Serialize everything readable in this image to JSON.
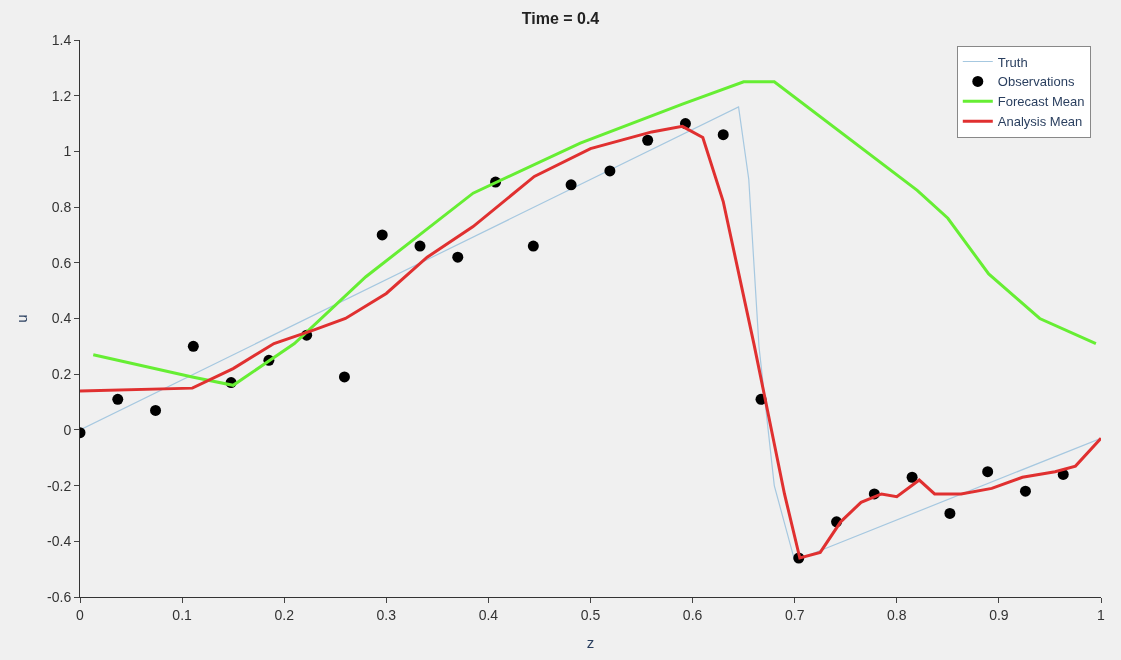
{
  "chart_data": {
    "type": "line",
    "title": "Time = 0.4",
    "xlabel": "z",
    "ylabel": "u",
    "xlim": [
      0,
      1
    ],
    "ylim": [
      -0.6,
      1.4
    ],
    "xticks": [
      0,
      0.1,
      0.2,
      0.3,
      0.4,
      0.5,
      0.6,
      0.7,
      0.8,
      0.9,
      1
    ],
    "yticks": [
      -0.6,
      -0.4,
      -0.2,
      0,
      0.2,
      0.4,
      0.6,
      0.8,
      1,
      1.2,
      1.4
    ],
    "grid": false,
    "legend": "top right",
    "marker": "none",
    "series": [
      {
        "name": "Truth",
        "color": "#a6c8e0",
        "x": [
          0,
          0.645,
          0.655,
          0.665,
          0.68,
          0.7,
          1.0
        ],
        "values": [
          0,
          1.16,
          0.9,
          0.3,
          -0.2,
          -0.47,
          -0.03
        ]
      },
      {
        "name": "Observations",
        "color": "#000000",
        "type": "scatter",
        "marker": "circle",
        "x": [
          0,
          0.037,
          0.074,
          0.111,
          0.148,
          0.185,
          0.222,
          0.259,
          0.296,
          0.333,
          0.37,
          0.407,
          0.444,
          0.481,
          0.519,
          0.556,
          0.593,
          0.63,
          0.667,
          0.704,
          0.741,
          0.778,
          0.815,
          0.852,
          0.889,
          0.926,
          0.963
        ],
        "values": [
          -0.01,
          0.11,
          0.07,
          0.3,
          0.17,
          0.25,
          0.34,
          0.19,
          0.7,
          0.66,
          0.62,
          0.89,
          0.66,
          0.88,
          0.93,
          1.04,
          1.1,
          1.06,
          0.11,
          -0.46,
          -0.33,
          -0.23,
          -0.17,
          -0.3,
          -0.15,
          -0.22,
          -0.16
        ]
      },
      {
        "name": "Forecast Mean",
        "color": "#66ee33",
        "x": [
          0.013,
          0.11,
          0.15,
          0.21,
          0.28,
          0.385,
          0.49,
          0.59,
          0.65,
          0.68,
          0.82,
          0.85,
          0.89,
          0.94,
          0.995
        ],
        "values": [
          0.27,
          0.19,
          0.16,
          0.31,
          0.55,
          0.85,
          1.03,
          1.17,
          1.25,
          1.25,
          0.86,
          0.76,
          0.56,
          0.4,
          0.31
        ]
      },
      {
        "name": "Analysis Mean",
        "color": "#e03030",
        "x": [
          0,
          0.11,
          0.15,
          0.19,
          0.23,
          0.26,
          0.3,
          0.34,
          0.385,
          0.445,
          0.5,
          0.56,
          0.59,
          0.61,
          0.63,
          0.66,
          0.69,
          0.705,
          0.725,
          0.745,
          0.765,
          0.785,
          0.8,
          0.822,
          0.837,
          0.863,
          0.893,
          0.923,
          0.955,
          0.975,
          1.0
        ],
        "values": [
          0.14,
          0.15,
          0.22,
          0.31,
          0.36,
          0.4,
          0.49,
          0.62,
          0.73,
          0.91,
          1.01,
          1.07,
          1.09,
          1.05,
          0.82,
          0.31,
          -0.23,
          -0.46,
          -0.44,
          -0.33,
          -0.26,
          -0.23,
          -0.24,
          -0.18,
          -0.23,
          -0.23,
          -0.21,
          -0.17,
          -0.15,
          -0.13,
          -0.03
        ]
      }
    ]
  }
}
